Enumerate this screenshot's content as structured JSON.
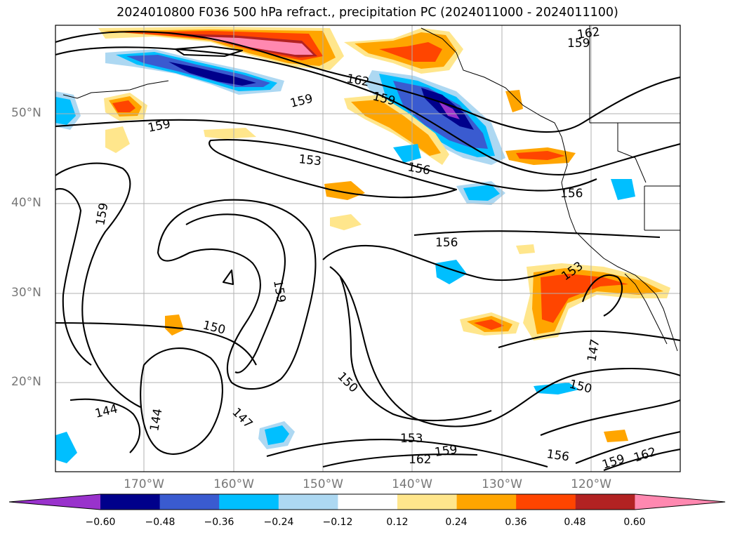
{
  "title": "2024010800 F036 500 hPa refract., precipitation PC (2024011000 - 2024011100)",
  "lat_labels": [
    "50°N",
    "40°N",
    "30°N",
    "20°N"
  ],
  "lon_labels": [
    "170°W",
    "160°W",
    "150°W",
    "140°W",
    "130°W",
    "120°W"
  ],
  "colorbar": {
    "tick_labels": [
      "−0.60",
      "−0.48",
      "−0.36",
      "−0.24",
      "−0.12",
      "0.12",
      "0.24",
      "0.36",
      "0.48",
      "0.60"
    ],
    "colors": [
      "#9932cc",
      "#00008b",
      "#3a5bd0",
      "#00bfff",
      "#add8f2",
      "#ffffff",
      "#ffe68c",
      "#ffa500",
      "#ff4500",
      "#b22222",
      "#ff88b0"
    ]
  },
  "contour_labels": [
    {
      "text": "162"
    },
    {
      "text": "159"
    },
    {
      "text": "162"
    },
    {
      "text": "159"
    },
    {
      "text": "159"
    },
    {
      "text": "159"
    },
    {
      "text": "153"
    },
    {
      "text": "156"
    },
    {
      "text": "156"
    },
    {
      "text": "159"
    },
    {
      "text": "156"
    },
    {
      "text": "153"
    },
    {
      "text": "159"
    },
    {
      "text": "150"
    },
    {
      "text": "147"
    },
    {
      "text": "150"
    },
    {
      "text": "150"
    },
    {
      "text": "144"
    },
    {
      "text": "144"
    },
    {
      "text": "147"
    },
    {
      "text": "153"
    },
    {
      "text": "159"
    },
    {
      "text": "162"
    },
    {
      "text": "156"
    },
    {
      "text": "159"
    },
    {
      "text": "162"
    }
  ]
}
